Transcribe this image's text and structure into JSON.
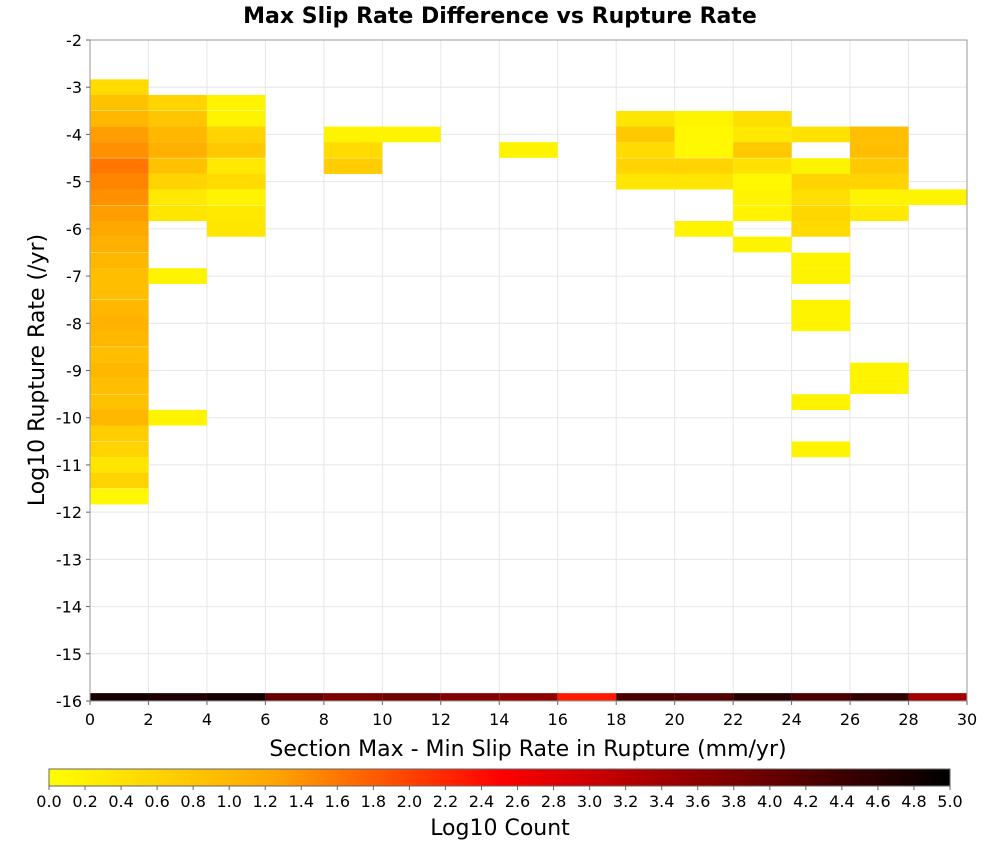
{
  "chart_data": {
    "type": "heatmap",
    "title": "Max Slip Rate Difference vs Rupture Rate",
    "xlabel": "Section Max - Min Slip Rate in Rupture (mm/yr)",
    "ylabel": "Log10 Rupture Rate (/yr)",
    "xlim": [
      0,
      30
    ],
    "ylim": [
      -16,
      -2
    ],
    "x_ticks": [
      "0",
      "2",
      "4",
      "6",
      "8",
      "10",
      "12",
      "14",
      "16",
      "18",
      "20",
      "22",
      "24",
      "26",
      "28",
      "30"
    ],
    "y_ticks": [
      "-2",
      "-3",
      "-4",
      "-5",
      "-6",
      "-7",
      "-8",
      "-9",
      "-10",
      "-11",
      "-12",
      "-13",
      "-14",
      "-15",
      "-16"
    ],
    "grid": true,
    "bin_width_x": 2,
    "bin_height_y": 0.333,
    "colorbar": {
      "label": "Log10 Count",
      "range": [
        0,
        5
      ],
      "ticks": [
        "0.0",
        "0.2",
        "0.4",
        "0.6",
        "0.8",
        "1.0",
        "1.2",
        "1.4",
        "1.6",
        "1.8",
        "2.0",
        "2.2",
        "2.4",
        "2.6",
        "2.8",
        "3.0",
        "3.2",
        "3.4",
        "3.6",
        "3.8",
        "4.0",
        "4.2",
        "4.4",
        "4.6",
        "4.8",
        "5.0"
      ],
      "colors": [
        "#ffff00",
        "#ffa500",
        "#ff0000",
        "#800000",
        "#000000"
      ]
    },
    "cells": [
      {
        "x": 0,
        "y": -3.0,
        "v": 0.5
      },
      {
        "x": 0,
        "y": -3.33,
        "v": 0.85
      },
      {
        "x": 0,
        "y": -3.67,
        "v": 1.0
      },
      {
        "x": 0,
        "y": -4.0,
        "v": 1.3
      },
      {
        "x": 0,
        "y": -4.33,
        "v": 1.4
      },
      {
        "x": 0,
        "y": -4.67,
        "v": 1.6
      },
      {
        "x": 0,
        "y": -5.0,
        "v": 1.5
      },
      {
        "x": 0,
        "y": -5.33,
        "v": 1.4
      },
      {
        "x": 0,
        "y": -5.67,
        "v": 1.3
      },
      {
        "x": 0,
        "y": -6.0,
        "v": 1.2
      },
      {
        "x": 0,
        "y": -6.33,
        "v": 1.1
      },
      {
        "x": 0,
        "y": -6.67,
        "v": 1.0
      },
      {
        "x": 0,
        "y": -7.0,
        "v": 0.9
      },
      {
        "x": 0,
        "y": -7.33,
        "v": 0.9
      },
      {
        "x": 0,
        "y": -7.67,
        "v": 1.0
      },
      {
        "x": 0,
        "y": -8.0,
        "v": 1.05
      },
      {
        "x": 0,
        "y": -8.33,
        "v": 1.0
      },
      {
        "x": 0,
        "y": -8.67,
        "v": 0.9
      },
      {
        "x": 0,
        "y": -9.0,
        "v": 1.0
      },
      {
        "x": 0,
        "y": -9.33,
        "v": 0.9
      },
      {
        "x": 0,
        "y": -9.67,
        "v": 0.85
      },
      {
        "x": 0,
        "y": -10.0,
        "v": 1.0
      },
      {
        "x": 0,
        "y": -10.33,
        "v": 0.7
      },
      {
        "x": 0,
        "y": -10.67,
        "v": 0.6
      },
      {
        "x": 0,
        "y": -11.0,
        "v": 0.35
      },
      {
        "x": 0,
        "y": -11.33,
        "v": 0.6
      },
      {
        "x": 0,
        "y": -11.67,
        "v": 0.1
      },
      {
        "x": 2,
        "y": -3.33,
        "v": 0.6
      },
      {
        "x": 2,
        "y": -3.67,
        "v": 0.8
      },
      {
        "x": 2,
        "y": -4.0,
        "v": 1.0
      },
      {
        "x": 2,
        "y": -4.33,
        "v": 1.1
      },
      {
        "x": 2,
        "y": -4.67,
        "v": 0.85
      },
      {
        "x": 2,
        "y": -5.0,
        "v": 0.6
      },
      {
        "x": 2,
        "y": -5.33,
        "v": 0.3
      },
      {
        "x": 2,
        "y": -5.67,
        "v": 0.35
      },
      {
        "x": 2,
        "y": -7.0,
        "v": 0.15
      },
      {
        "x": 2,
        "y": -10.0,
        "v": 0.15
      },
      {
        "x": 4,
        "y": -3.33,
        "v": 0.15
      },
      {
        "x": 4,
        "y": -3.67,
        "v": 0.15
      },
      {
        "x": 4,
        "y": -4.0,
        "v": 0.6
      },
      {
        "x": 4,
        "y": -4.33,
        "v": 0.75
      },
      {
        "x": 4,
        "y": -4.67,
        "v": 0.3
      },
      {
        "x": 4,
        "y": -5.0,
        "v": 0.5
      },
      {
        "x": 4,
        "y": -5.33,
        "v": 0.15
      },
      {
        "x": 4,
        "y": -5.67,
        "v": 0.3
      },
      {
        "x": 4,
        "y": -6.0,
        "v": 0.35
      },
      {
        "x": 8,
        "y": -4.0,
        "v": 0.15
      },
      {
        "x": 8,
        "y": -4.33,
        "v": 0.5
      },
      {
        "x": 8,
        "y": -4.67,
        "v": 0.7
      },
      {
        "x": 10,
        "y": -4.0,
        "v": 0.15
      },
      {
        "x": 14,
        "y": -4.33,
        "v": 0.15
      },
      {
        "x": 18,
        "y": -3.67,
        "v": 0.35
      },
      {
        "x": 18,
        "y": -4.0,
        "v": 0.75
      },
      {
        "x": 18,
        "y": -4.33,
        "v": 0.5
      },
      {
        "x": 18,
        "y": -4.67,
        "v": 0.6
      },
      {
        "x": 18,
        "y": -5.0,
        "v": 0.35
      },
      {
        "x": 20,
        "y": -3.67,
        "v": 0.15
      },
      {
        "x": 20,
        "y": -4.0,
        "v": 0.1
      },
      {
        "x": 20,
        "y": -4.33,
        "v": 0.1
      },
      {
        "x": 20,
        "y": -4.67,
        "v": 0.6
      },
      {
        "x": 20,
        "y": -5.0,
        "v": 0.35
      },
      {
        "x": 20,
        "y": -6.0,
        "v": 0.15
      },
      {
        "x": 22,
        "y": -3.67,
        "v": 0.45
      },
      {
        "x": 22,
        "y": -4.0,
        "v": 0.3
      },
      {
        "x": 22,
        "y": -4.33,
        "v": 0.75
      },
      {
        "x": 22,
        "y": -4.67,
        "v": 0.4
      },
      {
        "x": 22,
        "y": -5.0,
        "v": 0.1
      },
      {
        "x": 22,
        "y": -5.33,
        "v": 0.15
      },
      {
        "x": 22,
        "y": -5.67,
        "v": 0.15
      },
      {
        "x": 22,
        "y": -6.33,
        "v": 0.15
      },
      {
        "x": 24,
        "y": -4.0,
        "v": 0.4
      },
      {
        "x": 24,
        "y": -4.67,
        "v": 0.15
      },
      {
        "x": 24,
        "y": -5.0,
        "v": 0.6
      },
      {
        "x": 24,
        "y": -5.33,
        "v": 0.45
      },
      {
        "x": 24,
        "y": -5.67,
        "v": 0.55
      },
      {
        "x": 24,
        "y": -6.0,
        "v": 0.5
      },
      {
        "x": 24,
        "y": -6.67,
        "v": 0.15
      },
      {
        "x": 24,
        "y": -7.0,
        "v": 0.15
      },
      {
        "x": 24,
        "y": -7.67,
        "v": 0.15
      },
      {
        "x": 24,
        "y": -8.0,
        "v": 0.15
      },
      {
        "x": 24,
        "y": -9.67,
        "v": 0.15
      },
      {
        "x": 24,
        "y": -10.67,
        "v": 0.15
      },
      {
        "x": 26,
        "y": -4.0,
        "v": 0.9
      },
      {
        "x": 26,
        "y": -4.33,
        "v": 0.9
      },
      {
        "x": 26,
        "y": -4.67,
        "v": 0.75
      },
      {
        "x": 26,
        "y": -5.0,
        "v": 0.6
      },
      {
        "x": 26,
        "y": -5.33,
        "v": 0.15
      },
      {
        "x": 26,
        "y": -5.67,
        "v": 0.3
      },
      {
        "x": 26,
        "y": -9.0,
        "v": 0.15
      },
      {
        "x": 26,
        "y": -9.33,
        "v": 0.15
      },
      {
        "x": 28,
        "y": -5.33,
        "v": 0.15
      }
    ],
    "bottom_row": {
      "y": -16,
      "cells": [
        {
          "x": 0,
          "v": 4.8
        },
        {
          "x": 2,
          "v": 4.7
        },
        {
          "x": 4,
          "v": 4.8
        },
        {
          "x": 6,
          "v": 4.0
        },
        {
          "x": 8,
          "v": 3.8
        },
        {
          "x": 10,
          "v": 3.9
        },
        {
          "x": 12,
          "v": 3.7
        },
        {
          "x": 14,
          "v": 3.6
        },
        {
          "x": 16,
          "v": 2.3
        },
        {
          "x": 18,
          "v": 4.3
        },
        {
          "x": 20,
          "v": 4.2
        },
        {
          "x": 22,
          "v": 4.6
        },
        {
          "x": 24,
          "v": 4.3
        },
        {
          "x": 26,
          "v": 4.5
        },
        {
          "x": 28,
          "v": 3.4
        }
      ]
    }
  }
}
